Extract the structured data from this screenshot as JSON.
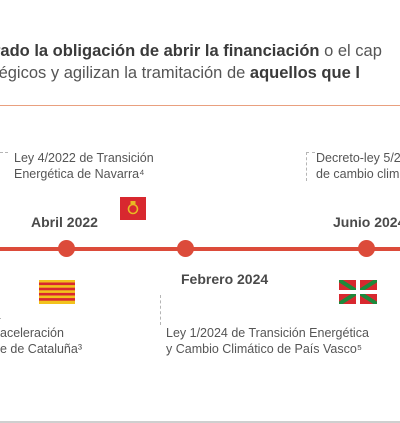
{
  "intro": {
    "line1_bold1": "rado la obligación de abrir la financiación",
    "line1_rest": " o el cap",
    "line2_start": "tégicos y agilizan la tramitación de ",
    "line2_bold": "aquellos que l"
  },
  "timeline": {
    "events": [
      {
        "date": "Abril 2022",
        "law_line1": "Ley 4/2022 de Transición",
        "law_line2": "Energética de  Navarra⁴",
        "flag": "navarra-flag"
      },
      {
        "date": "",
        "law_line1": "aceleración",
        "law_line2": "e de Cataluña³",
        "flag": "catalonia-flag"
      },
      {
        "date": "Febrero 2024",
        "law_line1": "Ley 1/2024 de Transición Energética",
        "law_line2": "y Cambio Climático de País Vasco⁵",
        "flag": "basque-flag"
      },
      {
        "date": "Junio 2024",
        "law_line1": "Decreto-ley 5/2",
        "law_line2": "de cambio clim",
        "flag": ""
      }
    ]
  },
  "colors": {
    "accent": "#dc4b3a",
    "divider": "#e9a07f"
  }
}
